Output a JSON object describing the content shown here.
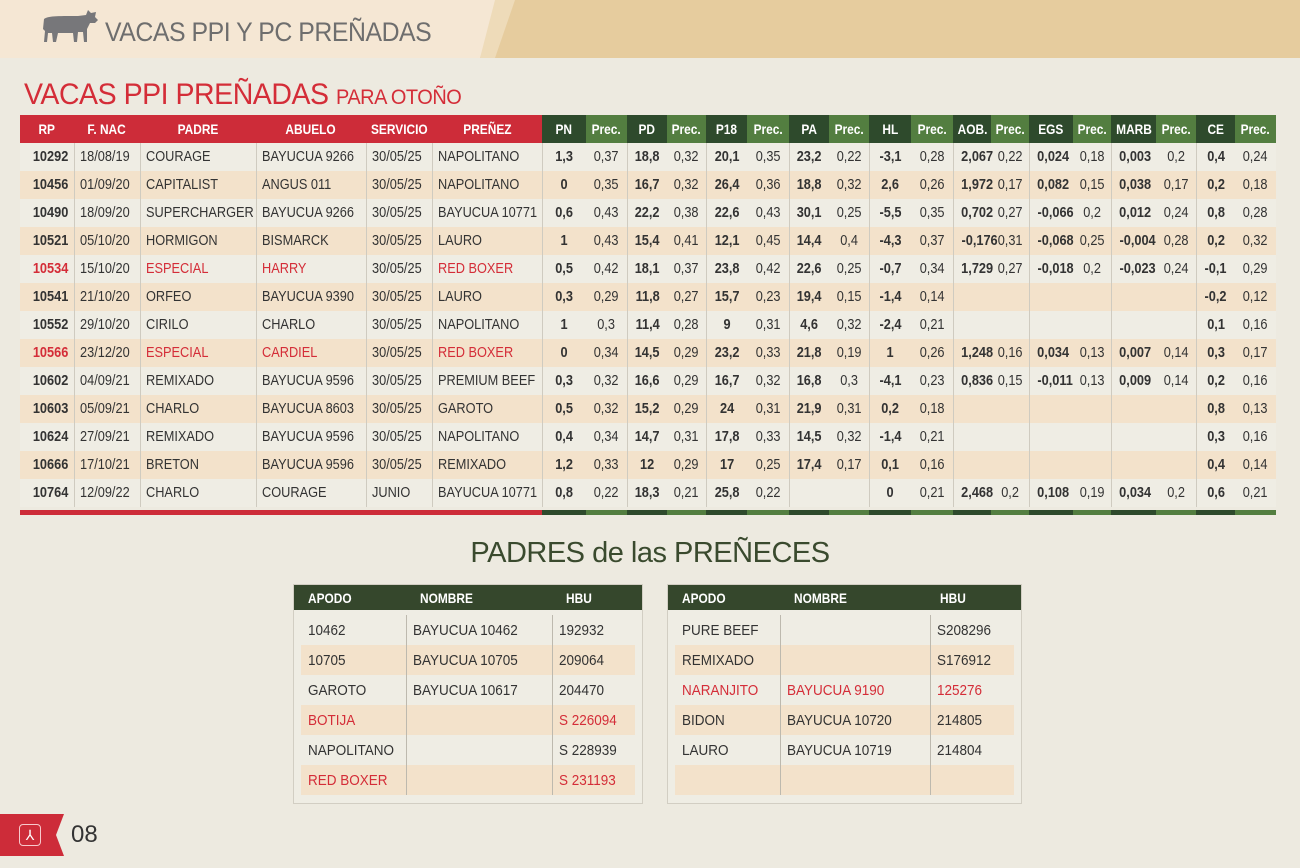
{
  "header": {
    "title": "VACAS PPI Y PC PREÑADAS",
    "icon": "cow-icon"
  },
  "section": {
    "title": "VACAS PPI PREÑADAS",
    "subtitle": "PARA OTOÑO"
  },
  "colors": {
    "red": "#cd2c39",
    "dark_green": "#2e4a2c",
    "light_green": "#537e40",
    "band": "#f3e2cb"
  },
  "main_table": {
    "columns": [
      "RP",
      "F. NAC",
      "PADRE",
      "ABUELO",
      "SERVICIO",
      "PREÑEZ",
      "PN",
      "Prec.",
      "PD",
      "Prec.",
      "P18",
      "Prec.",
      "PA",
      "Prec.",
      "HL",
      "Prec.",
      "AOB.",
      "Prec.",
      "EGS",
      "Prec.",
      "MARB",
      "Prec.",
      "CE",
      "Prec."
    ],
    "rows": [
      {
        "highlight": false,
        "cells": [
          "10292",
          "18/08/19",
          "COURAGE",
          "BAYUCUA 9266",
          "30/05/25",
          "NAPOLITANO",
          "1,3",
          "0,37",
          "18,8",
          "0,32",
          "20,1",
          "0,35",
          "23,2",
          "0,22",
          "-3,1",
          "0,28",
          "2,067",
          "0,22",
          "0,024",
          "0,18",
          "0,003",
          "0,2",
          "0,4",
          "0,24"
        ]
      },
      {
        "highlight": false,
        "cells": [
          "10456",
          "01/09/20",
          "CAPITALIST",
          "ANGUS 011",
          "30/05/25",
          "NAPOLITANO",
          "0",
          "0,35",
          "16,7",
          "0,32",
          "26,4",
          "0,36",
          "18,8",
          "0,32",
          "2,6",
          "0,26",
          "1,972",
          "0,17",
          "0,082",
          "0,15",
          "0,038",
          "0,17",
          "0,2",
          "0,18"
        ]
      },
      {
        "highlight": false,
        "cells": [
          "10490",
          "18/09/20",
          "SUPERCHARGER",
          "BAYUCUA 9266",
          "30/05/25",
          "BAYUCUA 10771",
          "0,6",
          "0,43",
          "22,2",
          "0,38",
          "22,6",
          "0,43",
          "30,1",
          "0,25",
          "-5,5",
          "0,35",
          "0,702",
          "0,27",
          "-0,066",
          "0,2",
          "0,012",
          "0,24",
          "0,8",
          "0,28"
        ]
      },
      {
        "highlight": false,
        "cells": [
          "10521",
          "05/10/20",
          "HORMIGON",
          "BISMARCK",
          "30/05/25",
          "LAURO",
          "1",
          "0,43",
          "15,4",
          "0,41",
          "12,1",
          "0,45",
          "14,4",
          "0,4",
          "-4,3",
          "0,37",
          "-0,176",
          "0,31",
          "-0,068",
          "0,25",
          "-0,004",
          "0,28",
          "0,2",
          "0,32"
        ]
      },
      {
        "highlight": true,
        "cells": [
          "10534",
          "15/10/20",
          "ESPECIAL",
          "HARRY",
          "30/05/25",
          "RED BOXER",
          "0,5",
          "0,42",
          "18,1",
          "0,37",
          "23,8",
          "0,42",
          "22,6",
          "0,25",
          "-0,7",
          "0,34",
          "1,729",
          "0,27",
          "-0,018",
          "0,2",
          "-0,023",
          "0,24",
          "-0,1",
          "0,29"
        ]
      },
      {
        "highlight": false,
        "cells": [
          "10541",
          "21/10/20",
          "ORFEO",
          "BAYUCUA 9390",
          "30/05/25",
          "LAURO",
          "0,3",
          "0,29",
          "11,8",
          "0,27",
          "15,7",
          "0,23",
          "19,4",
          "0,15",
          "-1,4",
          "0,14",
          "",
          "",
          "",
          "",
          "",
          "",
          "-0,2",
          "0,12"
        ]
      },
      {
        "highlight": false,
        "cells": [
          "10552",
          "29/10/20",
          "CIRILO",
          "CHARLO",
          "30/05/25",
          "NAPOLITANO",
          "1",
          "0,3",
          "11,4",
          "0,28",
          "9",
          "0,31",
          "4,6",
          "0,32",
          "-2,4",
          "0,21",
          "",
          "",
          "",
          "",
          "",
          "",
          "0,1",
          "0,16"
        ]
      },
      {
        "highlight": true,
        "cells": [
          "10566",
          "23/12/20",
          "ESPECIAL",
          "CARDIEL",
          "30/05/25",
          "RED BOXER",
          "0",
          "0,34",
          "14,5",
          "0,29",
          "23,2",
          "0,33",
          "21,8",
          "0,19",
          "1",
          "0,26",
          "1,248",
          "0,16",
          "0,034",
          "0,13",
          "0,007",
          "0,14",
          "0,3",
          "0,17"
        ]
      },
      {
        "highlight": false,
        "cells": [
          "10602",
          "04/09/21",
          "REMIXADO",
          "BAYUCUA 9596",
          "30/05/25",
          "PREMIUM BEEF",
          "0,3",
          "0,32",
          "16,6",
          "0,29",
          "16,7",
          "0,32",
          "16,8",
          "0,3",
          "-4,1",
          "0,23",
          "0,836",
          "0,15",
          "-0,011",
          "0,13",
          "0,009",
          "0,14",
          "0,2",
          "0,16"
        ]
      },
      {
        "highlight": false,
        "cells": [
          "10603",
          "05/09/21",
          "CHARLO",
          "BAYUCUA 8603",
          "30/05/25",
          "GAROTO",
          "0,5",
          "0,32",
          "15,2",
          "0,29",
          "24",
          "0,31",
          "21,9",
          "0,31",
          "0,2",
          "0,18",
          "",
          "",
          "",
          "",
          "",
          "",
          "0,8",
          "0,13"
        ]
      },
      {
        "highlight": false,
        "cells": [
          "10624",
          "27/09/21",
          "REMIXADO",
          "BAYUCUA 9596",
          "30/05/25",
          "NAPOLITANO",
          "0,4",
          "0,34",
          "14,7",
          "0,31",
          "17,8",
          "0,33",
          "14,5",
          "0,32",
          "-1,4",
          "0,21",
          "",
          "",
          "",
          "",
          "",
          "",
          "0,3",
          "0,16"
        ]
      },
      {
        "highlight": false,
        "cells": [
          "10666",
          "17/10/21",
          "BRETON",
          "BAYUCUA 9596",
          "30/05/25",
          "REMIXADO",
          "1,2",
          "0,33",
          "12",
          "0,29",
          "17",
          "0,25",
          "17,4",
          "0,17",
          "0,1",
          "0,16",
          "",
          "",
          "",
          "",
          "",
          "",
          "0,4",
          "0,14"
        ]
      },
      {
        "highlight": false,
        "cells": [
          "10764",
          "12/09/22",
          "CHARLO",
          "COURAGE",
          "JUNIO",
          "BAYUCUA 10771",
          "0,8",
          "0,22",
          "18,3",
          "0,21",
          "25,8",
          "0,22",
          "",
          "",
          "0",
          "0,21",
          "2,468",
          "0,2",
          "0,108",
          "0,19",
          "0,034",
          "0,2",
          "0,6",
          "0,21"
        ]
      }
    ]
  },
  "padres": {
    "title": "PADRES de las PREÑECES",
    "columns": [
      "APODO",
      "NOMBRE",
      "HBU"
    ],
    "left": [
      {
        "highlight": false,
        "cells": [
          "10462",
          "BAYUCUA 10462",
          "192932"
        ]
      },
      {
        "highlight": false,
        "cells": [
          "10705",
          "BAYUCUA 10705",
          "209064"
        ]
      },
      {
        "highlight": false,
        "cells": [
          "GAROTO",
          "BAYUCUA 10617",
          "204470"
        ]
      },
      {
        "highlight": true,
        "cells": [
          "BOTIJA",
          "",
          "S 226094"
        ]
      },
      {
        "highlight": false,
        "cells": [
          "NAPOLITANO",
          "",
          "S 228939"
        ]
      },
      {
        "highlight": true,
        "cells": [
          "RED BOXER",
          "",
          "S 231193"
        ]
      }
    ],
    "right": [
      {
        "highlight": false,
        "cells": [
          "PURE BEEF",
          "",
          "S208296"
        ]
      },
      {
        "highlight": false,
        "cells": [
          "REMIXADO",
          "",
          "S176912"
        ]
      },
      {
        "highlight": true,
        "cells": [
          "NARANJITO",
          "BAYUCUA 9190",
          "125276"
        ]
      },
      {
        "highlight": false,
        "cells": [
          "BIDON",
          "BAYUCUA 10720",
          "214805"
        ]
      },
      {
        "highlight": false,
        "cells": [
          "LAURO",
          "BAYUCUA 10719",
          "214804"
        ]
      },
      {
        "highlight": false,
        "cells": [
          "",
          "",
          ""
        ]
      }
    ]
  },
  "footer": {
    "page_number": "08",
    "icon": "brand-logo-icon"
  }
}
